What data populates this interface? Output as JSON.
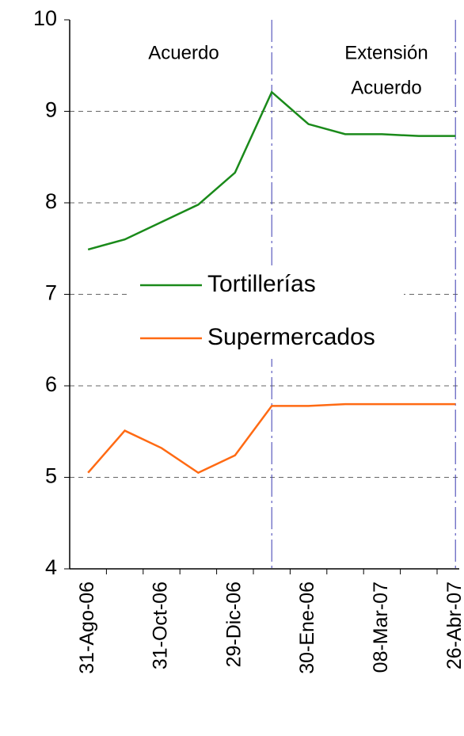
{
  "chart_data": {
    "type": "line",
    "categories": [
      "31-Ago-06",
      null,
      "31-Oct-06",
      null,
      "29-Dic-06",
      null,
      "30-Ene-06",
      null,
      "08-Mar-07",
      null,
      "26-Abr-07"
    ],
    "series": [
      {
        "name": "Tortillerías",
        "color": "#1a8a1a",
        "values": [
          7.49,
          7.6,
          7.79,
          7.98,
          8.33,
          9.21,
          8.86,
          8.75,
          8.75,
          8.73,
          8.73
        ]
      },
      {
        "name": "Supermercados",
        "color": "#ff6a13",
        "values": [
          5.05,
          5.51,
          5.32,
          5.05,
          5.24,
          5.78,
          5.78,
          5.8,
          5.8,
          5.8,
          5.8
        ]
      }
    ],
    "ylim": [
      4,
      10
    ],
    "yticks": [
      4,
      5,
      6,
      7,
      8,
      9,
      10
    ],
    "grid": true,
    "annotations": [
      {
        "lines": [
          "Acuerdo"
        ]
      },
      {
        "lines": [
          "Extensión",
          "Acuerdo"
        ]
      }
    ]
  }
}
